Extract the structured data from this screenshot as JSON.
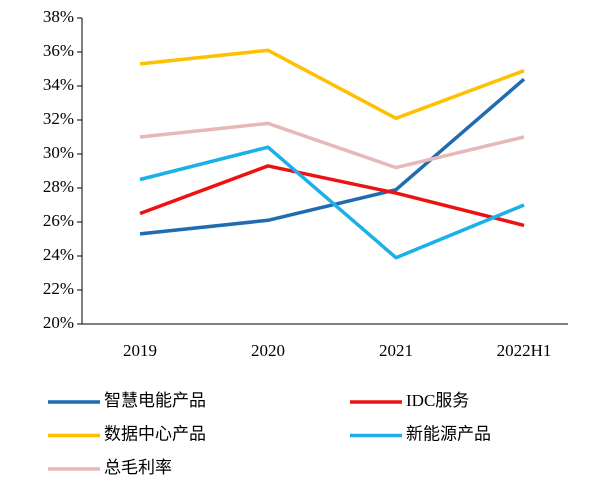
{
  "chart_data": {
    "type": "line",
    "categories": [
      "2019",
      "2020",
      "2021",
      "2022H1"
    ],
    "series": [
      {
        "name": "智慧电能产品",
        "color": "#1f6cb0",
        "values": [
          25.3,
          26.1,
          27.9,
          34.4
        ]
      },
      {
        "name": "IDC服务",
        "color": "#ee1111",
        "values": [
          26.5,
          29.3,
          27.7,
          25.8
        ]
      },
      {
        "name": "数据中心产品",
        "color": "#ffc000",
        "values": [
          35.3,
          36.1,
          32.1,
          34.9
        ]
      },
      {
        "name": "新能源产品",
        "color": "#1ab0e8",
        "values": [
          28.5,
          30.4,
          23.9,
          27.0
        ]
      },
      {
        "name": "总毛利率",
        "color": "#e6b8b7",
        "values": [
          31.0,
          31.8,
          29.2,
          31.0
        ]
      }
    ],
    "ylim": [
      20,
      38
    ],
    "yticks": [
      {
        "value": 20,
        "label": "20%"
      },
      {
        "value": 22,
        "label": "22%"
      },
      {
        "value": 24,
        "label": "24%"
      },
      {
        "value": 26,
        "label": "26%"
      },
      {
        "value": 28,
        "label": "28%"
      },
      {
        "value": 30,
        "label": "30%"
      },
      {
        "value": 32,
        "label": "32%"
      },
      {
        "value": 34,
        "label": "34%"
      },
      {
        "value": 36,
        "label": "36%"
      },
      {
        "value": 38,
        "label": "38%"
      }
    ],
    "grid": false
  }
}
